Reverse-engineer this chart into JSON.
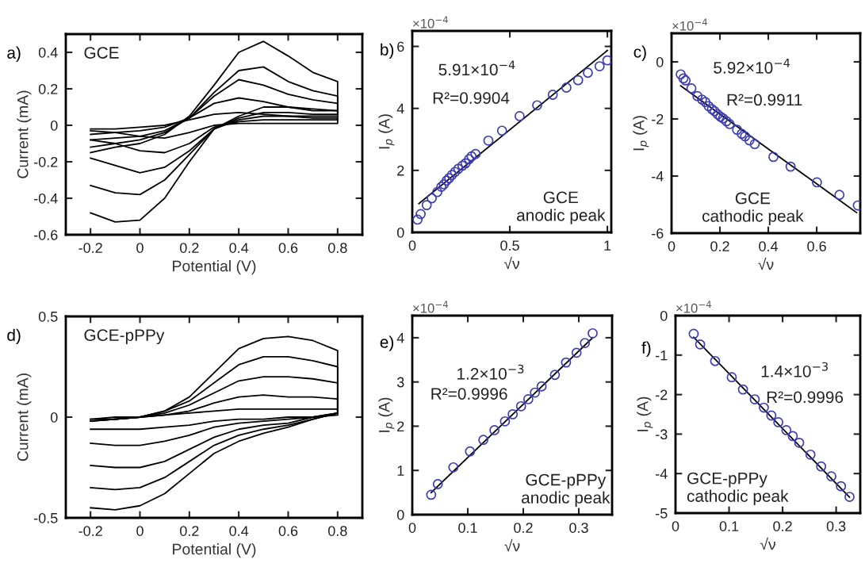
{
  "chart_data": [
    {
      "type": "line",
      "title": "a)",
      "xlabel": "Potential (V)",
      "ylabel": "Current (mA)",
      "xlim": [
        -0.3,
        0.9
      ],
      "xticks": [
        -0.2,
        0,
        0.2,
        0.4,
        0.6,
        0.8
      ],
      "ylim": [
        -0.6,
        0.5
      ],
      "yticks": [
        -0.6,
        -0.4,
        -0.2,
        0,
        0.2,
        0.4
      ],
      "annotations": [
        "GCE"
      ],
      "x": [
        -0.2,
        -0.1,
        0,
        0.1,
        0.2,
        0.3,
        0.4,
        0.5,
        0.6,
        0.7,
        0.8,
        0.8,
        0.7,
        0.6,
        0.5,
        0.4,
        0.3,
        0.2,
        0.1,
        0,
        -0.1,
        -0.2
      ],
      "series": [
        {
          "color": "#000000",
          "values": [
            -0.15,
            -0.12,
            -0.1,
            -0.05,
            0.05,
            0.22,
            0.4,
            0.46,
            0.38,
            0.29,
            0.24,
            0.08,
            0.08,
            0.1,
            0.1,
            0.05,
            -0.02,
            -0.2,
            -0.4,
            -0.52,
            -0.53,
            -0.48
          ]
        },
        {
          "color": "#000000",
          "values": [
            -0.12,
            -0.1,
            -0.08,
            -0.04,
            0.04,
            0.18,
            0.3,
            0.32,
            0.24,
            0.19,
            0.16,
            0.06,
            0.06,
            0.07,
            0.07,
            0.04,
            -0.02,
            -0.16,
            -0.3,
            -0.38,
            -0.37,
            -0.33
          ]
        },
        {
          "color": "#000000",
          "values": [
            -0.08,
            -0.07,
            -0.06,
            -0.03,
            0.04,
            0.16,
            0.25,
            0.22,
            0.17,
            0.14,
            0.12,
            0.05,
            0.05,
            0.05,
            0.05,
            0.03,
            -0.02,
            -0.14,
            -0.23,
            -0.26,
            -0.22,
            -0.18
          ]
        },
        {
          "color": "#000000",
          "values": [
            -0.05,
            -0.04,
            -0.03,
            -0.01,
            0.04,
            0.12,
            0.15,
            0.13,
            0.1,
            0.09,
            0.08,
            0.03,
            0.03,
            0.03,
            0.03,
            0.02,
            -0.01,
            -0.1,
            -0.15,
            -0.14,
            -0.1,
            -0.08
          ]
        },
        {
          "color": "#000000",
          "values": [
            -0.02,
            -0.02,
            -0.01,
            0,
            0.03,
            0.06,
            0.07,
            0.06,
            0.05,
            0.04,
            0.04,
            0.01,
            0.01,
            0.01,
            0.01,
            0.01,
            0,
            -0.04,
            -0.07,
            -0.06,
            -0.04,
            -0.03
          ]
        }
      ]
    },
    {
      "type": "scatter",
      "title": "b)",
      "xlabel": "√ν",
      "ylabel": "I$_{p}$ (A)",
      "xlim": [
        0,
        1.02
      ],
      "xticks": [
        0,
        0.5,
        1
      ],
      "ylim": [
        0,
        6.5
      ],
      "yticks": [
        0,
        2,
        4,
        6
      ],
      "annotations": [
        "×10$^{−4}$",
        "5.91×10$^{−4}$",
        "R²=0.9904",
        "GCE\nanodic peak"
      ],
      "series": [
        {
          "type": "scatter",
          "marker": "circle",
          "color": "#3c3cb4",
          "x": [
            0.027,
            0.043,
            0.074,
            0.1,
            0.128,
            0.149,
            0.162,
            0.176,
            0.189,
            0.203,
            0.219,
            0.236,
            0.257,
            0.273,
            0.291,
            0.304,
            0.324,
            0.39,
            0.46,
            0.55,
            0.64,
            0.72,
            0.79,
            0.85,
            0.9,
            0.96,
            1.0
          ],
          "values": [
            0.41,
            0.59,
            0.88,
            1.1,
            1.3,
            1.47,
            1.55,
            1.67,
            1.75,
            1.85,
            1.95,
            2.05,
            2.15,
            2.23,
            2.36,
            2.45,
            2.53,
            2.96,
            3.28,
            3.75,
            4.1,
            4.44,
            4.67,
            4.91,
            5.15,
            5.36,
            5.55
          ]
        },
        {
          "type": "line",
          "color": "#000000",
          "x": [
            0.034,
            1.0
          ],
          "values": [
            0.93,
            5.87
          ]
        }
      ]
    },
    {
      "type": "scatter",
      "title": "c)",
      "xlabel": "√ν",
      "ylabel": "I$_{p}$ (A)",
      "xlim": [
        0,
        0.78
      ],
      "xticks": [
        0,
        0.2,
        0.4,
        0.6
      ],
      "ylim": [
        -6,
        1
      ],
      "yticks": [
        -6,
        -4,
        -2,
        0
      ],
      "annotations": [
        "×10$^{−4}$",
        "5.92×10$^{−4}$",
        "R²=0.9911",
        "GCE\ncathodic peak"
      ],
      "series": [
        {
          "type": "scatter",
          "marker": "circle",
          "color": "#3c3cb4",
          "x": [
            0.038,
            0.049,
            0.058,
            0.082,
            0.107,
            0.126,
            0.14,
            0.153,
            0.167,
            0.178,
            0.191,
            0.202,
            0.213,
            0.227,
            0.24,
            0.271,
            0.29,
            0.304,
            0.322,
            0.344,
            0.421,
            0.492,
            0.601,
            0.694,
            0.77
          ],
          "values": [
            -0.44,
            -0.58,
            -0.65,
            -0.93,
            -1.2,
            -1.32,
            -1.41,
            -1.55,
            -1.66,
            -1.73,
            -1.84,
            -1.92,
            -1.98,
            -2.08,
            -2.18,
            -2.38,
            -2.52,
            -2.61,
            -2.75,
            -2.88,
            -3.33,
            -3.67,
            -4.22,
            -4.66,
            -5.03
          ]
        },
        {
          "type": "line",
          "color": "#000000",
          "x": [
            0.038,
            0.765
          ],
          "values": [
            -0.84,
            -5.28
          ]
        }
      ]
    },
    {
      "type": "line",
      "title": "d)",
      "xlabel": "Potential (V)",
      "ylabel": "Current (mA)",
      "xlim": [
        -0.3,
        0.9
      ],
      "xticks": [
        -0.2,
        0,
        0.2,
        0.4,
        0.6,
        0.8
      ],
      "ylim": [
        -0.5,
        0.5
      ],
      "yticks": [
        -0.5,
        0,
        0.5
      ],
      "annotations": [
        "GCE-pPPy"
      ],
      "x": [
        -0.2,
        -0.1,
        0,
        0.1,
        0.2,
        0.3,
        0.4,
        0.5,
        0.6,
        0.7,
        0.8,
        0.8,
        0.7,
        0.6,
        0.5,
        0.4,
        0.3,
        0.2,
        0.1,
        0,
        -0.1,
        -0.2
      ],
      "series": [
        {
          "color": "#000000",
          "values": [
            -0.02,
            -0.01,
            0,
            0.03,
            0.1,
            0.22,
            0.34,
            0.39,
            0.4,
            0.38,
            0.33,
            0.02,
            -0.01,
            -0.05,
            -0.08,
            -0.12,
            -0.18,
            -0.28,
            -0.38,
            -0.44,
            -0.46,
            -0.45
          ]
        },
        {
          "color": "#000000",
          "values": [
            -0.02,
            -0.01,
            0,
            0.03,
            0.08,
            0.17,
            0.26,
            0.3,
            0.3,
            0.28,
            0.25,
            0.02,
            -0.01,
            -0.04,
            -0.06,
            -0.09,
            -0.14,
            -0.22,
            -0.3,
            -0.35,
            -0.36,
            -0.35
          ]
        },
        {
          "color": "#000000",
          "values": [
            -0.02,
            -0.01,
            0,
            0.02,
            0.06,
            0.12,
            0.18,
            0.2,
            0.2,
            0.19,
            0.17,
            0.02,
            0,
            -0.03,
            -0.04,
            -0.06,
            -0.1,
            -0.16,
            -0.22,
            -0.25,
            -0.25,
            -0.24
          ]
        },
        {
          "color": "#000000",
          "values": [
            -0.01,
            -0.01,
            0,
            0.01,
            0.03,
            0.07,
            0.1,
            0.11,
            0.1,
            0.1,
            0.09,
            0.02,
            0,
            -0.01,
            -0.02,
            -0.03,
            -0.05,
            -0.09,
            -0.12,
            -0.14,
            -0.14,
            -0.13
          ]
        },
        {
          "color": "#000000",
          "values": [
            -0.01,
            0,
            0,
            0.01,
            0.02,
            0.03,
            0.04,
            0.04,
            0.04,
            0.04,
            0.04,
            0.01,
            0,
            0,
            -0.01,
            -0.01,
            -0.02,
            -0.04,
            -0.05,
            -0.06,
            -0.06,
            -0.06
          ]
        }
      ]
    },
    {
      "type": "scatter",
      "title": "e)",
      "xlabel": "√ν",
      "ylabel": "I$_{p}$ (A)",
      "xlim": [
        0,
        0.36
      ],
      "xticks": [
        0,
        0.1,
        0.2,
        0.3
      ],
      "ylim": [
        0,
        4.5
      ],
      "yticks": [
        0,
        1,
        2,
        3,
        4
      ],
      "annotations": [
        "×10$^{−4}$",
        "1.2×10$^{−3}$",
        "R²=0.9996",
        "GCE-pPPy\nanodic peak"
      ],
      "series": [
        {
          "type": "scatter",
          "marker": "circle",
          "color": "#3c3cb4",
          "x": [
            0.034,
            0.046,
            0.074,
            0.104,
            0.128,
            0.148,
            0.167,
            0.181,
            0.196,
            0.209,
            0.221,
            0.233,
            0.257,
            0.277,
            0.296,
            0.311,
            0.325
          ],
          "values": [
            0.45,
            0.69,
            1.07,
            1.43,
            1.69,
            1.91,
            2.11,
            2.27,
            2.45,
            2.61,
            2.76,
            2.9,
            3.16,
            3.44,
            3.66,
            3.88,
            4.1
          ]
        },
        {
          "type": "line",
          "color": "#000000",
          "x": [
            0.034,
            0.325
          ],
          "values": [
            0.5,
            4.0
          ]
        }
      ]
    },
    {
      "type": "scatter",
      "title": "f)",
      "xlabel": "√ν",
      "ylabel": "I$_{p}$ (A)",
      "xlim": [
        0,
        0.345
      ],
      "xticks": [
        0,
        0.1,
        0.2,
        0.3
      ],
      "ylim": [
        -5,
        0
      ],
      "yticks": [
        -5,
        -4,
        -3,
        -2,
        -1,
        0
      ],
      "annotations": [
        "×10$^{−4}$",
        "1.4×10$^{−3}$",
        "R²=0.9996",
        "GCE-pPPy\ncathodic peak"
      ],
      "series": [
        {
          "type": "scatter",
          "marker": "circle",
          "color": "#3c3cb4",
          "x": [
            0.034,
            0.046,
            0.074,
            0.105,
            0.126,
            0.148,
            0.165,
            0.179,
            0.192,
            0.207,
            0.219,
            0.231,
            0.252,
            0.272,
            0.291,
            0.309,
            0.325
          ],
          "values": [
            -0.46,
            -0.73,
            -1.15,
            -1.56,
            -1.87,
            -2.12,
            -2.33,
            -2.53,
            -2.7,
            -2.9,
            -3.05,
            -3.22,
            -3.52,
            -3.82,
            -4.07,
            -4.32,
            -4.59
          ]
        },
        {
          "type": "line",
          "color": "#000000",
          "x": [
            0.034,
            0.325
          ],
          "values": [
            -0.55,
            -4.6
          ]
        }
      ]
    }
  ]
}
